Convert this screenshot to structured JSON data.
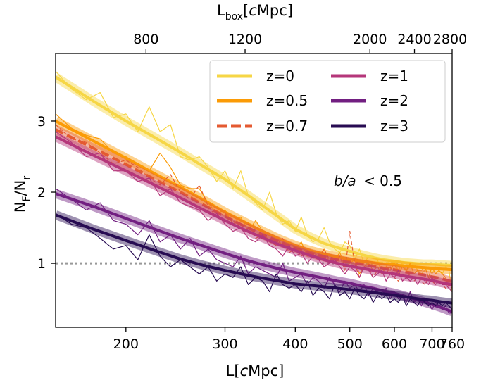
{
  "chart_data": {
    "type": "line",
    "xlabel_text": "L[",
    "xlabel_ital": "c",
    "xlabel_end": "Mpc]",
    "top_xlabel_main": "L",
    "top_xlabel_sub": "box",
    "top_xlabel_open": "[",
    "top_xlabel_ital": "c",
    "top_xlabel_end": "Mpc]",
    "ylabel_main": "N",
    "ylabel_sub1": "F",
    "ylabel_slash": "/N",
    "ylabel_sub2": "r",
    "annotation_ba": "b/a",
    "annotation_rest": "< 0.5",
    "xlim": [
      150,
      760
    ],
    "ylim": [
      0.1,
      3.95
    ],
    "bottom_ticks": [
      200,
      300,
      400,
      500,
      600,
      700,
      760
    ],
    "top_ticks": [
      800,
      1200,
      2000,
      2400,
      2800
    ],
    "y_ticks": [
      1,
      2,
      3
    ],
    "reference_line": 1.0,
    "reference_color": "#999999",
    "series": [
      {
        "name": "z=0",
        "color": "#f6d645",
        "dashed": false,
        "smooth_x": [
          150,
          175,
          200,
          225,
          250,
          275,
          300,
          325,
          350,
          375,
          400,
          425,
          450,
          475,
          500,
          525,
          550,
          575,
          600,
          625,
          650,
          675,
          700,
          725,
          760
        ],
        "smooth_y": [
          3.62,
          3.28,
          3.0,
          2.77,
          2.56,
          2.36,
          2.18,
          1.99,
          1.81,
          1.64,
          1.48,
          1.37,
          1.28,
          1.22,
          1.17,
          1.12,
          1.08,
          1.05,
          1.03,
          1.01,
          1.0,
          0.99,
          0.99,
          0.98,
          0.97
        ],
        "noisy_x": [
          150,
          160,
          170,
          180,
          190,
          200,
          210,
          220,
          230,
          240,
          250,
          260,
          270,
          280,
          290,
          300,
          310,
          320,
          330,
          340,
          350,
          360,
          370,
          380,
          390,
          400,
          410,
          420,
          430,
          440,
          450,
          460,
          470,
          480,
          490,
          500,
          510,
          520,
          530,
          540,
          550,
          560,
          570,
          580,
          590,
          600,
          610,
          620,
          630,
          640,
          650,
          660,
          670,
          680,
          690,
          700,
          710,
          720,
          730,
          740,
          750,
          760
        ],
        "noisy_y": [
          3.7,
          3.45,
          3.3,
          3.4,
          3.05,
          3.1,
          2.85,
          3.2,
          2.85,
          2.95,
          2.5,
          2.45,
          2.5,
          2.35,
          2.15,
          2.3,
          2.05,
          2.3,
          1.95,
          1.85,
          1.75,
          2.0,
          1.7,
          1.55,
          1.6,
          1.45,
          1.65,
          1.4,
          1.3,
          1.35,
          1.5,
          1.3,
          1.2,
          1.15,
          1.3,
          1.25,
          1.05,
          1.2,
          1.0,
          1.1,
          1.1,
          1.05,
          0.85,
          0.95,
          1.05,
          1.0,
          0.9,
          1.0,
          0.9,
          0.95,
          1.0,
          0.9,
          0.85,
          0.9,
          0.95,
          0.85,
          0.95,
          0.9,
          0.85,
          0.95,
          0.9,
          0.6
        ]
      },
      {
        "name": "z=0.5",
        "color": "#fb9b06",
        "dashed": false,
        "smooth_x": [
          150,
          175,
          200,
          225,
          250,
          275,
          300,
          325,
          350,
          375,
          400,
          425,
          450,
          475,
          500,
          525,
          550,
          575,
          600,
          625,
          650,
          675,
          700,
          725,
          760
        ],
        "smooth_y": [
          3.0,
          2.72,
          2.48,
          2.26,
          2.07,
          1.89,
          1.72,
          1.58,
          1.45,
          1.34,
          1.25,
          1.18,
          1.13,
          1.09,
          1.06,
          1.03,
          1.01,
          0.99,
          0.98,
          0.96,
          0.95,
          0.94,
          0.93,
          0.92,
          0.91
        ],
        "noisy_x": [
          150,
          160,
          170,
          180,
          190,
          200,
          210,
          220,
          230,
          240,
          250,
          260,
          270,
          280,
          290,
          300,
          310,
          320,
          330,
          340,
          350,
          360,
          370,
          380,
          390,
          400,
          410,
          420,
          430,
          440,
          450,
          460,
          470,
          480,
          490,
          500,
          510,
          520,
          530,
          540,
          550,
          560,
          570,
          580,
          590,
          600,
          610,
          620,
          630,
          640,
          650,
          660,
          670,
          680,
          690,
          700,
          710,
          720,
          730,
          740,
          750,
          760
        ],
        "noisy_y": [
          3.1,
          2.9,
          2.8,
          2.75,
          2.55,
          2.5,
          2.4,
          2.3,
          2.55,
          2.35,
          2.1,
          2.05,
          2.05,
          1.85,
          1.7,
          1.75,
          1.55,
          1.65,
          1.45,
          1.6,
          1.45,
          1.3,
          1.35,
          1.25,
          1.3,
          1.2,
          1.3,
          1.1,
          1.15,
          1.1,
          1.2,
          1.0,
          1.05,
          1.15,
          0.95,
          1.0,
          1.05,
          0.85,
          0.95,
          1.0,
          0.9,
          0.95,
          0.85,
          0.95,
          0.9,
          1.0,
          0.85,
          0.95,
          0.9,
          1.0,
          0.85,
          0.9,
          0.9,
          0.95,
          0.8,
          0.95,
          0.85,
          0.9,
          0.85,
          0.8,
          0.7,
          0.7
        ]
      },
      {
        "name": "z=0.7",
        "color": "#e45a31",
        "dashed": true,
        "smooth_x": [
          150,
          175,
          200,
          225,
          250,
          275,
          300,
          325,
          350,
          375,
          400,
          425,
          450,
          475,
          500,
          525,
          550,
          575,
          600,
          625,
          650,
          675,
          700,
          725,
          760
        ],
        "smooth_y": [
          2.88,
          2.62,
          2.39,
          2.18,
          2.0,
          1.82,
          1.66,
          1.52,
          1.4,
          1.3,
          1.21,
          1.14,
          1.09,
          1.05,
          1.02,
          0.99,
          0.96,
          0.93,
          0.91,
          0.88,
          0.86,
          0.84,
          0.81,
          0.79,
          0.74
        ],
        "noisy_x": [
          150,
          160,
          170,
          180,
          190,
          200,
          210,
          220,
          230,
          240,
          250,
          260,
          270,
          280,
          290,
          300,
          310,
          320,
          330,
          340,
          350,
          360,
          370,
          380,
          390,
          400,
          410,
          420,
          430,
          440,
          450,
          460,
          470,
          480,
          490,
          500,
          510,
          520,
          530,
          540,
          550,
          560,
          570,
          580,
          590,
          600,
          610,
          620,
          630,
          640,
          650,
          660,
          670,
          680,
          690,
          700,
          710,
          720,
          730,
          740,
          750,
          760
        ],
        "noisy_y": [
          2.95,
          2.75,
          2.7,
          2.55,
          2.4,
          2.45,
          2.35,
          2.2,
          2.1,
          2.25,
          2.0,
          1.9,
          2.1,
          1.8,
          1.65,
          1.7,
          1.6,
          1.5,
          1.55,
          1.35,
          1.4,
          1.3,
          1.25,
          1.35,
          1.15,
          1.2,
          1.1,
          1.15,
          1.1,
          1.05,
          1.2,
          1.05,
          1.0,
          1.1,
          0.9,
          1.45,
          1.0,
          0.8,
          0.95,
          0.95,
          0.8,
          0.9,
          0.85,
          0.85,
          0.95,
          0.8,
          0.75,
          0.85,
          0.8,
          0.85,
          0.75,
          0.8,
          0.75,
          0.7,
          0.8,
          0.75,
          0.7,
          0.75,
          0.7,
          0.65,
          0.7,
          0.65
        ]
      },
      {
        "name": "z=1",
        "color": "#b5367a",
        "dashed": false,
        "smooth_x": [
          150,
          175,
          200,
          225,
          250,
          275,
          300,
          325,
          350,
          375,
          400,
          425,
          450,
          475,
          500,
          525,
          550,
          575,
          600,
          625,
          650,
          675,
          700,
          725,
          760
        ],
        "smooth_y": [
          2.78,
          2.52,
          2.3,
          2.1,
          1.92,
          1.75,
          1.6,
          1.47,
          1.36,
          1.26,
          1.18,
          1.11,
          1.05,
          1.0,
          0.96,
          0.93,
          0.9,
          0.87,
          0.85,
          0.82,
          0.8,
          0.78,
          0.76,
          0.73,
          0.7
        ],
        "noisy_x": [
          150,
          160,
          170,
          180,
          190,
          200,
          210,
          220,
          230,
          240,
          250,
          260,
          270,
          280,
          290,
          300,
          310,
          320,
          330,
          340,
          350,
          360,
          370,
          380,
          390,
          400,
          410,
          420,
          430,
          440,
          450,
          460,
          470,
          480,
          490,
          500,
          510,
          520,
          530,
          540,
          550,
          560,
          570,
          580,
          590,
          600,
          610,
          620,
          630,
          640,
          650,
          660,
          670,
          680,
          690,
          700,
          710,
          720,
          730,
          740,
          750,
          760
        ],
        "noisy_y": [
          2.85,
          2.7,
          2.5,
          2.55,
          2.3,
          2.3,
          2.15,
          2.2,
          1.95,
          2.05,
          1.85,
          1.8,
          1.75,
          1.6,
          1.7,
          1.55,
          1.45,
          1.5,
          1.35,
          1.3,
          1.4,
          1.25,
          1.2,
          1.1,
          1.25,
          1.1,
          1.15,
          1.0,
          1.1,
          1.05,
          0.95,
          1.0,
          1.05,
          0.95,
          0.85,
          0.95,
          0.9,
          0.8,
          0.95,
          0.9,
          0.8,
          0.85,
          0.9,
          0.75,
          0.85,
          0.8,
          0.9,
          0.75,
          0.8,
          0.75,
          0.8,
          0.7,
          0.8,
          0.75,
          0.7,
          0.8,
          0.7,
          0.75,
          0.7,
          0.7,
          0.65,
          0.6
        ]
      },
      {
        "name": "z=2",
        "color": "#721f81",
        "dashed": false,
        "smooth_x": [
          150,
          175,
          200,
          225,
          250,
          275,
          300,
          325,
          350,
          375,
          400,
          425,
          450,
          475,
          500,
          525,
          550,
          575,
          600,
          625,
          650,
          675,
          700,
          725,
          760
        ],
        "smooth_y": [
          1.98,
          1.8,
          1.63,
          1.48,
          1.35,
          1.24,
          1.14,
          1.05,
          0.98,
          0.92,
          0.87,
          0.83,
          0.79,
          0.75,
          0.72,
          0.68,
          0.65,
          0.61,
          0.58,
          0.54,
          0.5,
          0.46,
          0.42,
          0.38,
          0.32
        ],
        "noisy_x": [
          150,
          160,
          170,
          180,
          190,
          200,
          210,
          220,
          230,
          240,
          250,
          260,
          270,
          280,
          290,
          300,
          310,
          320,
          330,
          340,
          350,
          360,
          370,
          380,
          390,
          400,
          410,
          420,
          430,
          440,
          450,
          460,
          470,
          480,
          490,
          500,
          510,
          520,
          530,
          540,
          550,
          560,
          570,
          580,
          590,
          600,
          610,
          620,
          630,
          640,
          650,
          660,
          670,
          680,
          690,
          700,
          710,
          720,
          730,
          740,
          750,
          760
        ],
        "noisy_y": [
          2.05,
          1.9,
          1.75,
          1.85,
          1.6,
          1.55,
          1.4,
          1.6,
          1.3,
          1.4,
          1.2,
          1.35,
          1.1,
          1.2,
          1.05,
          1.0,
          0.95,
          1.1,
          0.85,
          0.95,
          0.9,
          0.85,
          0.8,
          1.0,
          0.75,
          0.8,
          0.85,
          0.7,
          0.8,
          0.75,
          0.65,
          0.8,
          0.7,
          0.6,
          0.75,
          0.65,
          0.7,
          0.6,
          0.7,
          0.55,
          0.65,
          0.6,
          0.55,
          0.65,
          0.5,
          0.6,
          0.5,
          0.55,
          0.45,
          0.6,
          0.45,
          0.5,
          0.4,
          0.5,
          0.45,
          0.35,
          0.45,
          0.4,
          0.35,
          0.4,
          0.3,
          0.3
        ]
      },
      {
        "name": "z=3",
        "color": "#270b52",
        "dashed": false,
        "smooth_x": [
          150,
          175,
          200,
          225,
          250,
          275,
          300,
          325,
          350,
          375,
          400,
          425,
          450,
          475,
          500,
          525,
          550,
          575,
          600,
          625,
          650,
          675,
          700,
          725,
          760
        ],
        "smooth_y": [
          1.68,
          1.48,
          1.32,
          1.18,
          1.06,
          0.97,
          0.9,
          0.84,
          0.79,
          0.75,
          0.71,
          0.69,
          0.67,
          0.65,
          0.63,
          0.61,
          0.59,
          0.57,
          0.55,
          0.53,
          0.51,
          0.49,
          0.48,
          0.46,
          0.44
        ],
        "noisy_x": [
          150,
          160,
          170,
          180,
          190,
          200,
          210,
          220,
          230,
          240,
          250,
          260,
          270,
          280,
          290,
          300,
          310,
          320,
          330,
          340,
          350,
          360,
          370,
          380,
          390,
          400,
          410,
          420,
          430,
          440,
          450,
          460,
          470,
          480,
          490,
          500,
          510,
          520,
          530,
          540,
          550,
          560,
          570,
          580,
          590,
          600,
          610,
          620,
          630,
          640,
          650,
          660,
          670,
          680,
          690,
          700,
          710,
          720,
          730,
          740,
          750,
          760
        ],
        "noisy_y": [
          1.7,
          1.55,
          1.5,
          1.35,
          1.2,
          1.25,
          1.05,
          1.4,
          1.1,
          0.95,
          1.05,
          0.95,
          0.85,
          0.95,
          0.75,
          0.85,
          0.8,
          0.95,
          0.7,
          0.8,
          0.75,
          0.6,
          0.85,
          0.7,
          0.65,
          0.7,
          0.6,
          0.75,
          0.55,
          0.65,
          0.6,
          0.5,
          0.7,
          0.55,
          0.6,
          0.5,
          0.65,
          0.55,
          0.5,
          0.6,
          0.45,
          0.55,
          0.5,
          0.55,
          0.45,
          0.5,
          0.45,
          0.55,
          0.4,
          0.5,
          0.45,
          0.4,
          0.5,
          0.45,
          0.4,
          0.45,
          0.4,
          0.45,
          0.4,
          0.45,
          0.4,
          0.35
        ]
      }
    ]
  }
}
